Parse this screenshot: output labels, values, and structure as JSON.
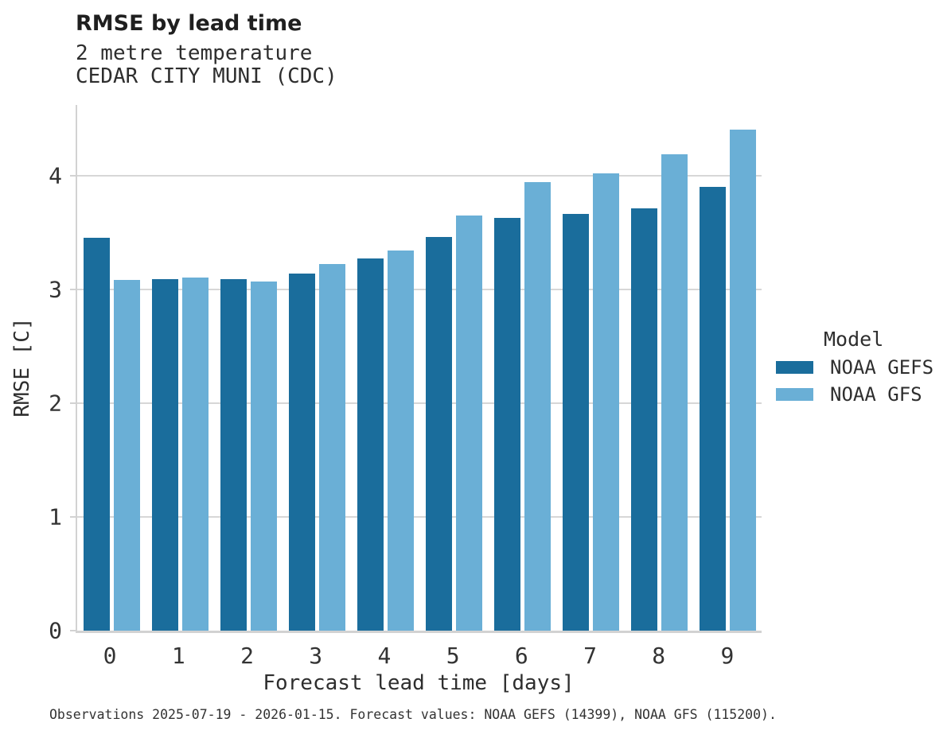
{
  "header": {
    "title": "RMSE by lead time",
    "subtitle1": "2 metre temperature",
    "subtitle2": "CEDAR CITY MUNI (CDC)"
  },
  "colors": {
    "gefs_dark_blue": "#1a6d9c",
    "gfs_light_blue": "#6aafd6",
    "gridline_gray": "#d7d7d7",
    "spine_gray": "#d2d2d2",
    "text_dark": "#2e2e2e"
  },
  "legend": {
    "title": "Model"
  },
  "footer": {
    "note": "Observations 2025-07-19 - 2026-01-15. Forecast values: NOAA GEFS (14399), NOAA GFS (115200)."
  },
  "chart_data": {
    "type": "bar",
    "title": "RMSE by lead time",
    "subtitle": [
      "2 metre temperature",
      "CEDAR CITY MUNI (CDC)"
    ],
    "categories": [
      "0",
      "1",
      "2",
      "3",
      "4",
      "5",
      "6",
      "7",
      "8",
      "9"
    ],
    "series": [
      {
        "name": "NOAA GEFS",
        "color": "#1a6d9c",
        "values": [
          3.45,
          3.09,
          3.09,
          3.14,
          3.27,
          3.46,
          3.63,
          3.66,
          3.71,
          3.9
        ]
      },
      {
        "name": "NOAA GFS",
        "color": "#6aafd6",
        "values": [
          3.08,
          3.1,
          3.07,
          3.22,
          3.34,
          3.65,
          3.94,
          4.02,
          4.19,
          4.4
        ]
      }
    ],
    "xlabel": "Forecast lead time [days]",
    "ylabel": "RMSE [C]",
    "ylim": [
      0,
      4.62
    ],
    "yticks": [
      0,
      1,
      2,
      3,
      4
    ],
    "grid": true,
    "legend_title": "Model",
    "legend_position": "right"
  }
}
